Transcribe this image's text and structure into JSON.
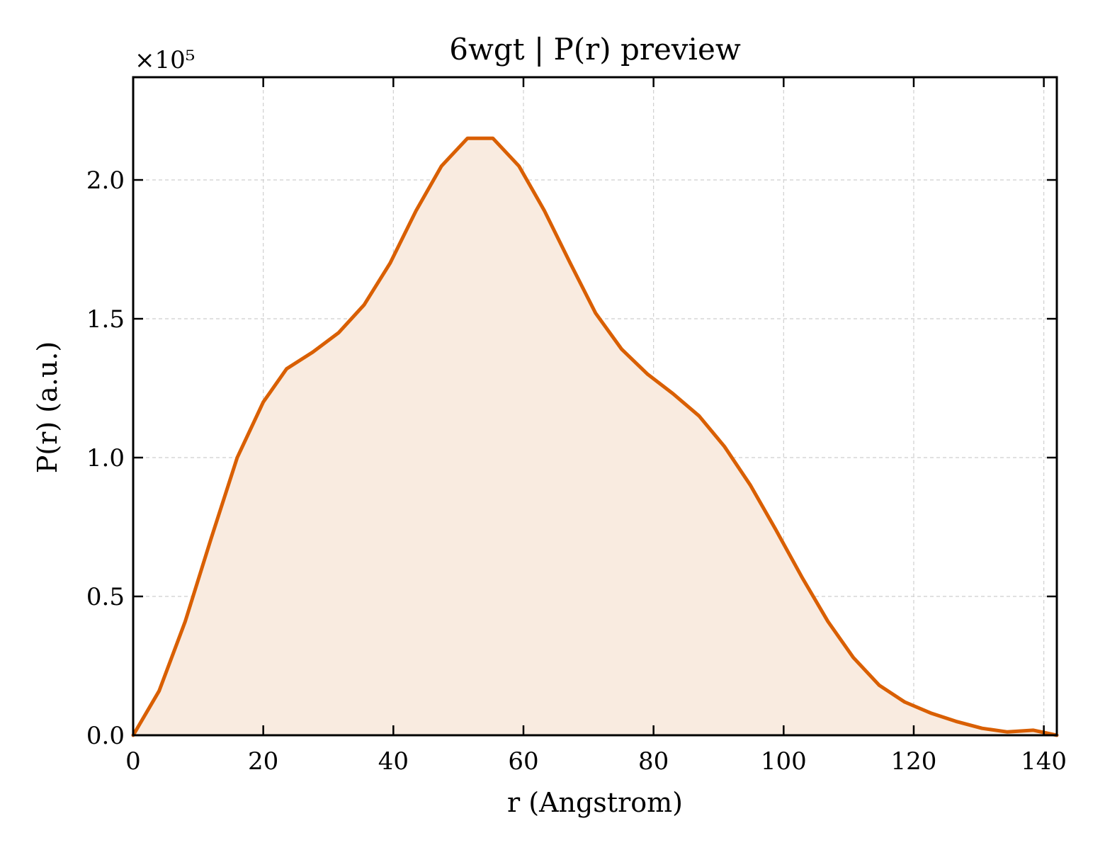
{
  "chart_data": {
    "type": "area",
    "title": "6wgt | P(r) preview",
    "xlabel": "r (Angstrom)",
    "ylabel": "P(r) (a.u.)",
    "y_scale_label": "×10⁵",
    "xlim": [
      0,
      142
    ],
    "ylim": [
      0,
      2.37
    ],
    "xticks": [
      0,
      20,
      40,
      60,
      80,
      100,
      120,
      140
    ],
    "xtick_labels": [
      "0",
      "20",
      "40",
      "60",
      "80",
      "100",
      "120",
      "140"
    ],
    "yticks": [
      0.0,
      0.5,
      1.0,
      1.5,
      2.0
    ],
    "ytick_labels": [
      "0.0",
      "0.5",
      "1.0",
      "1.5",
      "2.0"
    ],
    "grid": true,
    "line_color": "#d95f02",
    "fill_color": "#f9ebe0",
    "series": [
      {
        "x": [
          0,
          4,
          8,
          12,
          16,
          20,
          23.6,
          27.6,
          31.6,
          35.5,
          39.5,
          43.5,
          47.4,
          51.4,
          55.3,
          59.3,
          63.2,
          67.2,
          71.1,
          75.1,
          79.1,
          83.0,
          87.0,
          90.9,
          94.9,
          98.8,
          102.8,
          106.8,
          110.7,
          114.7,
          118.6,
          122.6,
          126.5,
          130.5,
          134.4,
          138.4,
          142
        ],
        "y": [
          0.0,
          0.16,
          0.41,
          0.71,
          1.0,
          1.2,
          1.32,
          1.38,
          1.45,
          1.55,
          1.7,
          1.89,
          2.05,
          2.15,
          2.15,
          2.05,
          1.89,
          1.7,
          1.52,
          1.39,
          1.3,
          1.23,
          1.15,
          1.04,
          0.9,
          0.74,
          0.57,
          0.41,
          0.28,
          0.18,
          0.12,
          0.08,
          0.05,
          0.025,
          0.012,
          0.018,
          0.0
        ]
      }
    ]
  }
}
